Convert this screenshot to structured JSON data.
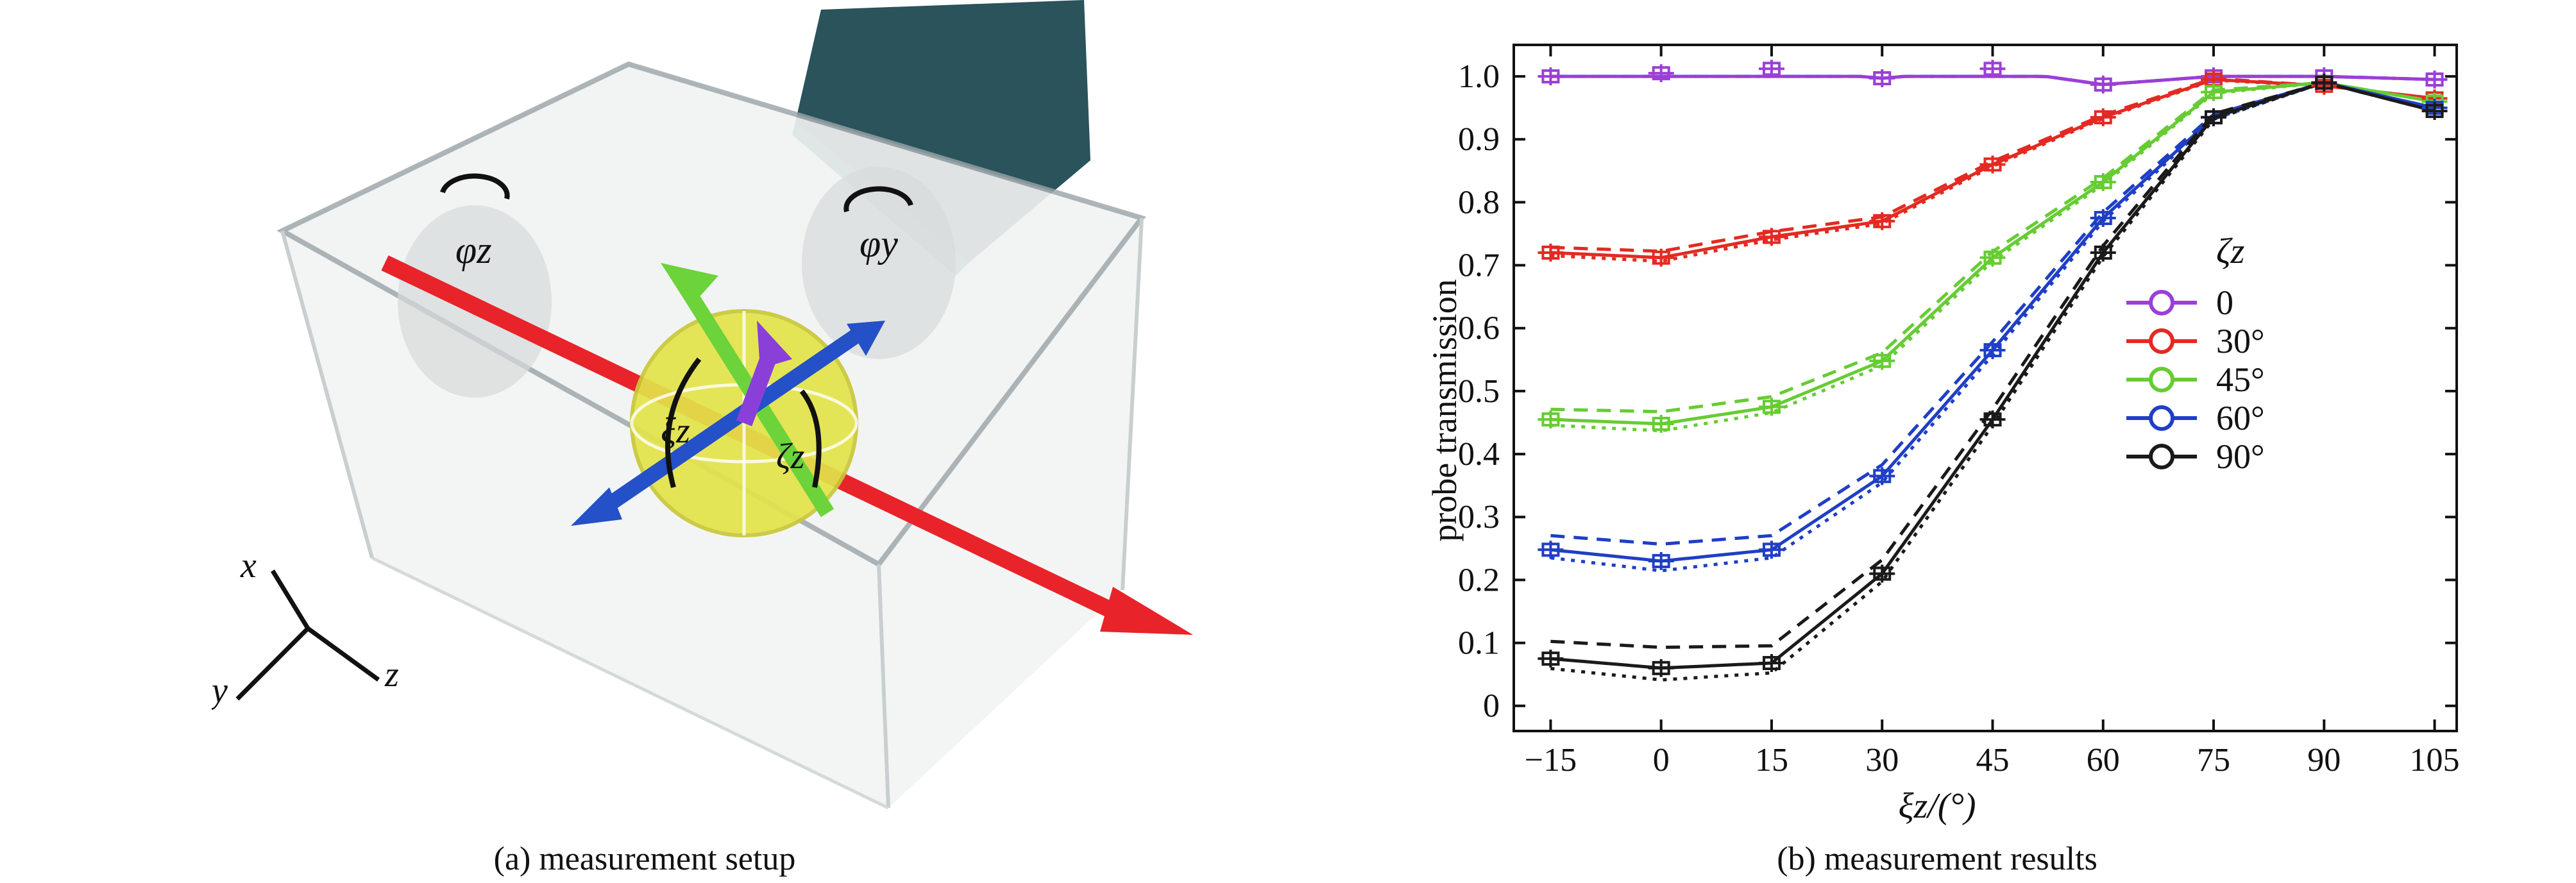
{
  "panel_a": {
    "caption": "(a) measurement setup",
    "labels": {
      "phi_z": "φz",
      "phi_y": "φy",
      "xi_z": "ξz",
      "zeta_z": "ζz",
      "axis_x": "x",
      "axis_y": "y",
      "axis_z": "z"
    },
    "colors": {
      "box": "#9aa3a8",
      "probe_beam": "#e8232a",
      "sphere": "#e3e34a",
      "arrow_green": "#6cd33a",
      "arrow_blue": "#2450c8",
      "arrow_purple": "#8a3fd8",
      "camera": "#1f4a52"
    }
  },
  "panel_b": {
    "caption": "(b) measurement results",
    "chart_data": {
      "type": "line",
      "title": "",
      "xlabel": "ξz/(°)",
      "ylabel": "probe transmission",
      "xlim": [
        -20,
        108
      ],
      "ylim": [
        -0.04,
        1.05
      ],
      "xticks": [
        -15,
        0,
        15,
        30,
        45,
        60,
        75,
        90,
        105
      ],
      "xtick_labels": [
        "−15",
        "0",
        "15",
        "30",
        "45",
        "60",
        "75",
        "90",
        "105"
      ],
      "yticks": [
        0,
        0.1,
        0.2,
        0.3,
        0.4,
        0.5,
        0.6,
        0.7,
        0.8,
        0.9,
        1.0
      ],
      "ytick_labels": [
        "0",
        "0.1",
        "0.2",
        "0.3",
        "0.4",
        "0.5",
        "0.6",
        "0.7",
        "0.8",
        "0.9",
        "1.0"
      ],
      "grid": false,
      "legend": {
        "title": "ζz",
        "placement": "right-middle"
      },
      "series": [
        {
          "name": "0",
          "color": "#9b3fd6",
          "x": [
            -15,
            0,
            15,
            30,
            45,
            60,
            75,
            90,
            105
          ],
          "y": [
            1.0,
            1.005,
            1.012,
            0.997,
            1.012,
            0.987,
            1.0,
            1.0,
            0.995
          ]
        },
        {
          "name": "30°",
          "color": "#e32a22",
          "x": [
            -15,
            0,
            15,
            30,
            45,
            60,
            75,
            90,
            105
          ],
          "y": [
            0.72,
            0.712,
            0.745,
            0.77,
            0.86,
            0.935,
            0.995,
            0.985,
            0.965
          ]
        },
        {
          "name": "45°",
          "color": "#66cc33",
          "x": [
            -15,
            0,
            15,
            30,
            45,
            60,
            75,
            90,
            105
          ],
          "y": [
            0.455,
            0.448,
            0.475,
            0.548,
            0.712,
            0.832,
            0.975,
            0.99,
            0.96
          ]
        },
        {
          "name": "60°",
          "color": "#1f3fc4",
          "x": [
            -15,
            0,
            15,
            30,
            45,
            60,
            75,
            90,
            105
          ],
          "y": [
            0.248,
            0.23,
            0.248,
            0.365,
            0.565,
            0.775,
            0.935,
            0.99,
            0.95
          ]
        },
        {
          "name": "90°",
          "color": "#1a1a1a",
          "x": [
            -15,
            0,
            15,
            30,
            45,
            60,
            75,
            90,
            105
          ],
          "y": [
            0.075,
            0.06,
            0.068,
            0.21,
            0.455,
            0.72,
            0.935,
            0.99,
            0.945
          ]
        }
      ]
    }
  }
}
